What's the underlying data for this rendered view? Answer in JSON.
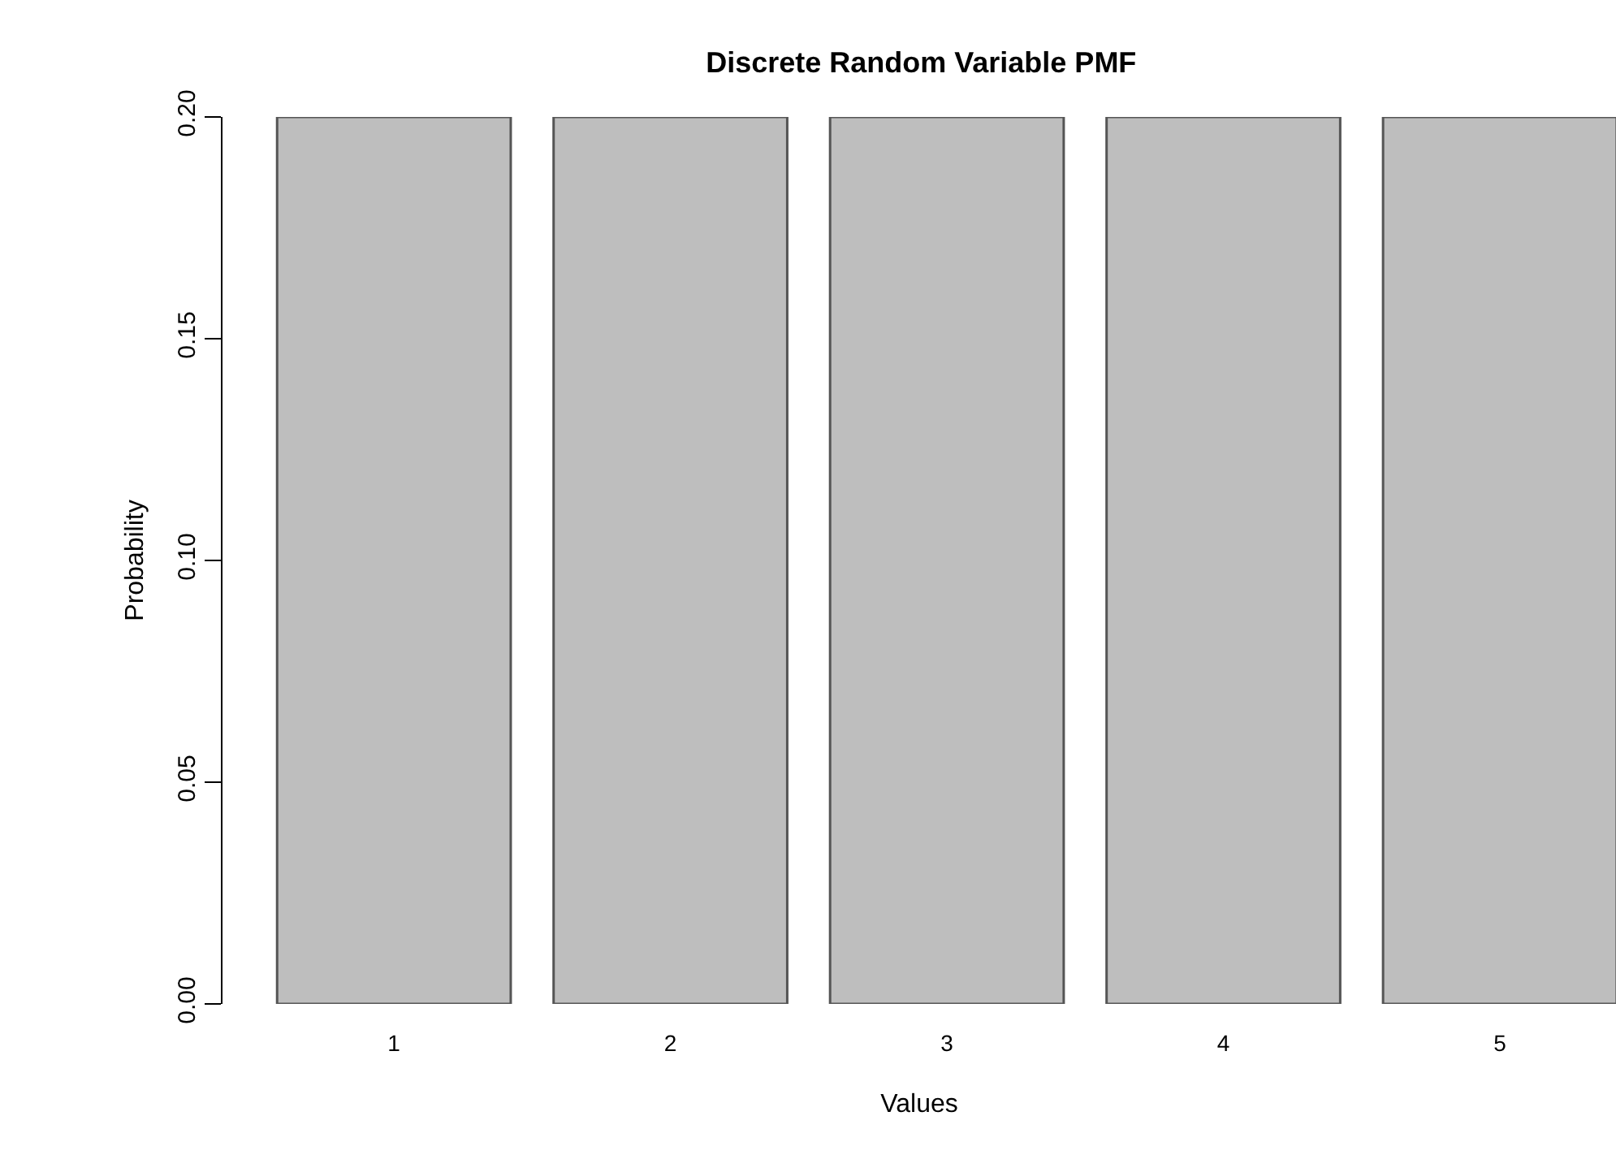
{
  "chart_data": {
    "type": "bar",
    "title": "Discrete Random Variable PMF",
    "xlabel": "Values",
    "ylabel": "Probability",
    "categories": [
      "1",
      "2",
      "3",
      "4",
      "5"
    ],
    "values": [
      0.2,
      0.2,
      0.2,
      0.2,
      0.2
    ],
    "color": "#bebebe",
    "ylim": [
      0,
      0.2
    ],
    "yticks": [
      {
        "value": 0,
        "label": "0.00"
      },
      {
        "value": 0.05,
        "label": "0.05"
      },
      {
        "value": 0.1,
        "label": "0.10"
      },
      {
        "value": 0.15,
        "label": "0.15"
      },
      {
        "value": 0.2,
        "label": "0.20"
      }
    ],
    "grid": false,
    "legend": false
  }
}
